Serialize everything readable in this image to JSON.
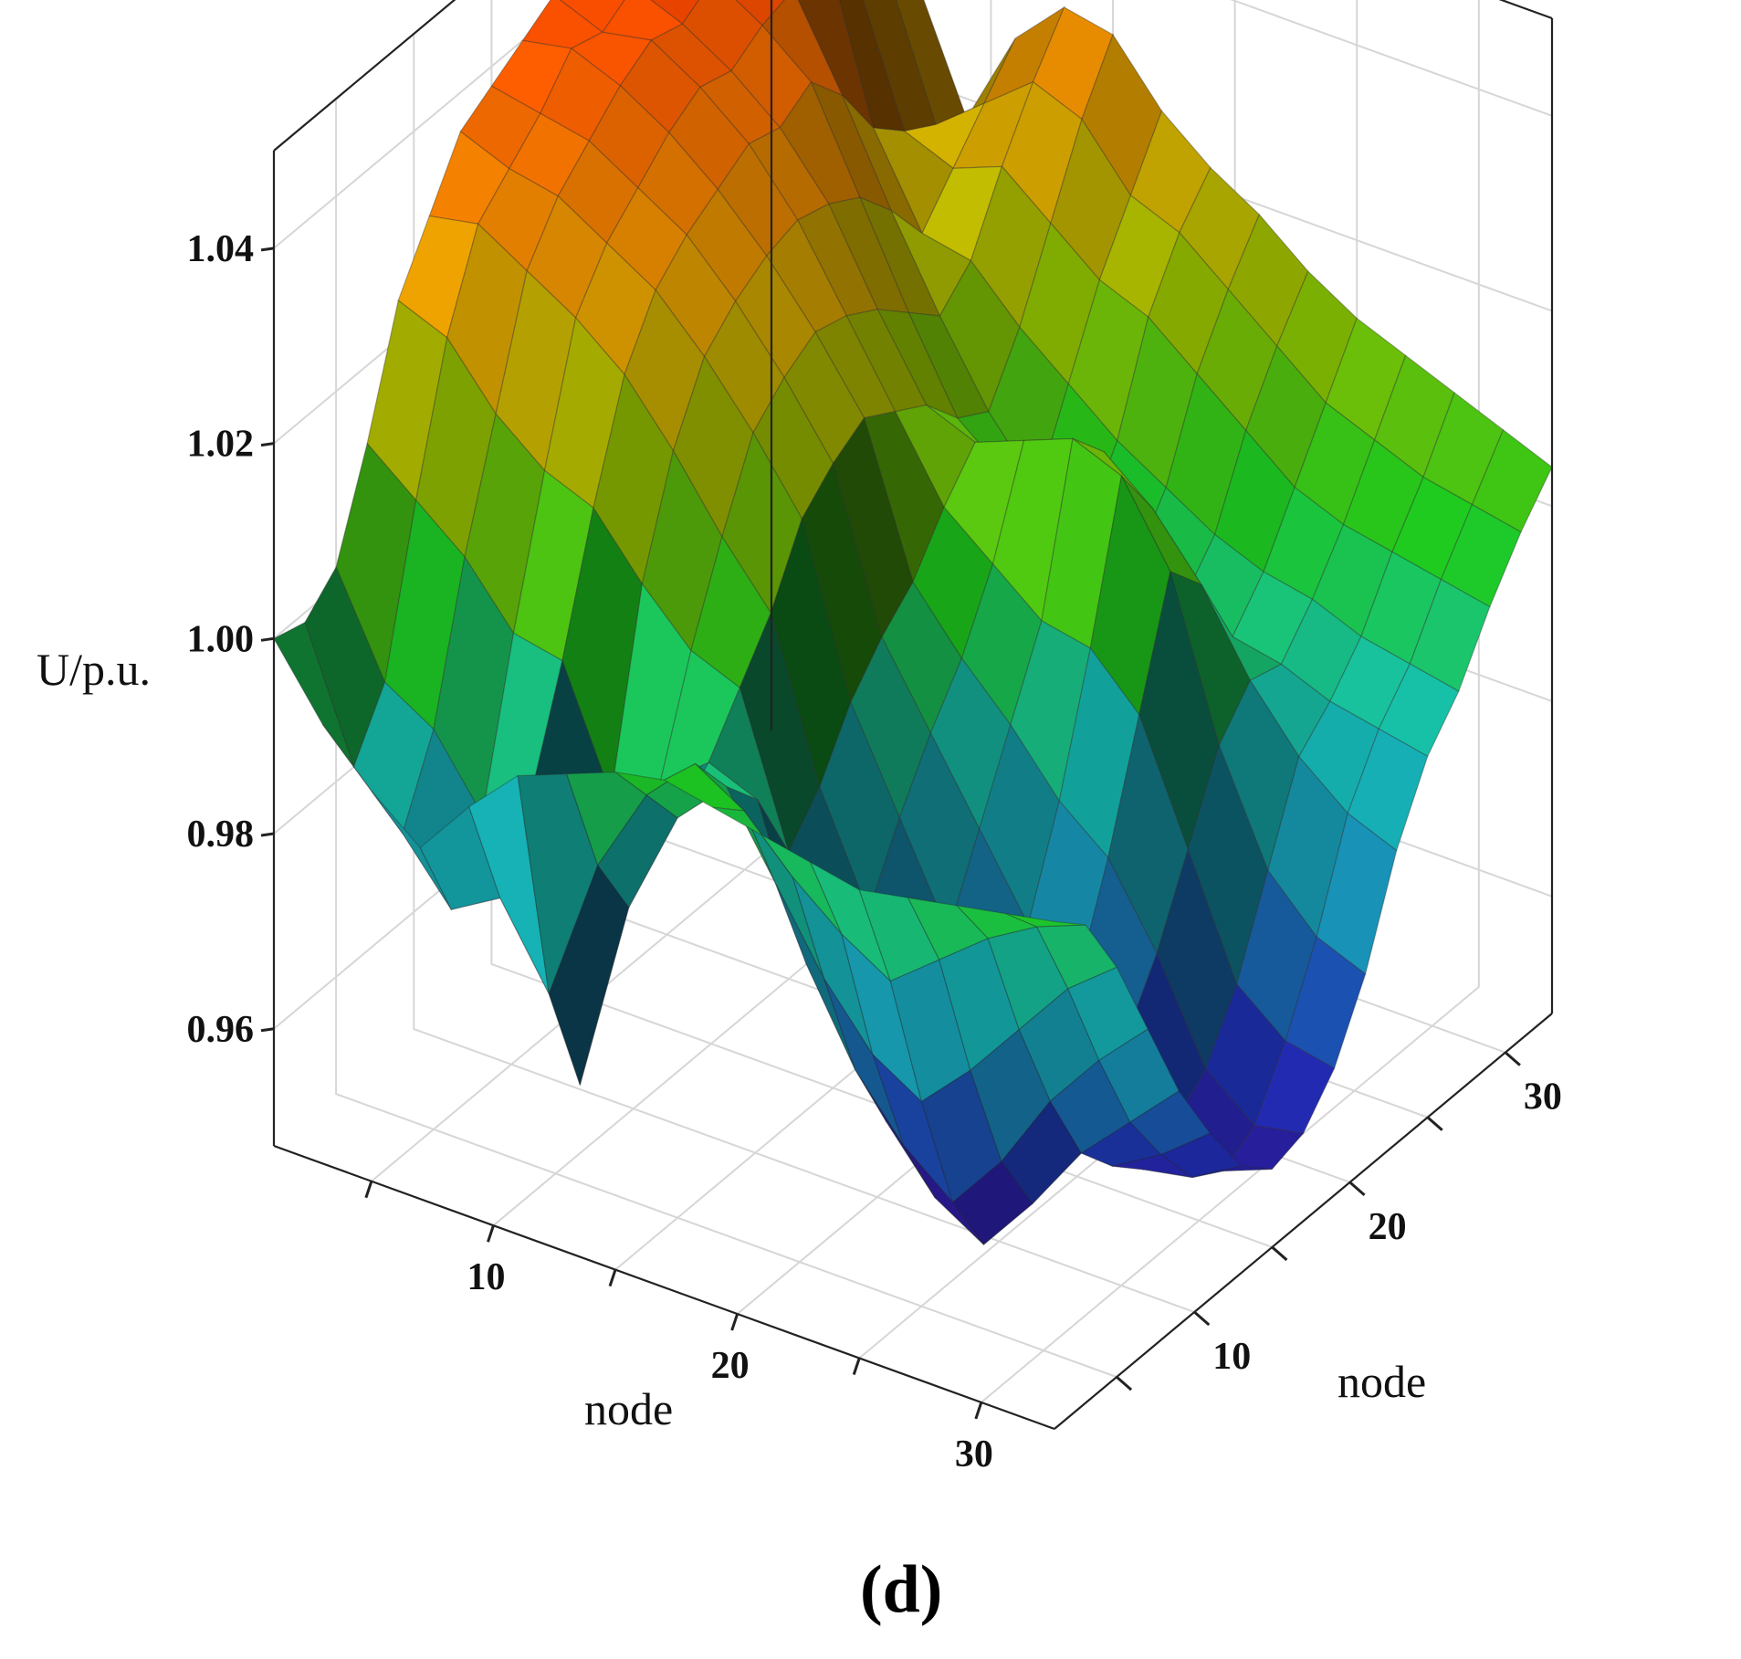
{
  "chart_data": {
    "type": "surface",
    "panel_label": "(d)",
    "zlabel": "U/p.u.",
    "xlabel": "node",
    "ylabel": "node",
    "z_ticks": [
      "0.96",
      "0.98",
      "1.00",
      "1.02",
      "1.04"
    ],
    "zlim": [
      0.948,
      1.05
    ],
    "x_ticks": [
      "10",
      "20",
      "30"
    ],
    "xlim": [
      1,
      33
    ],
    "y_ticks": [
      "10",
      "20",
      "30"
    ],
    "ylim": [
      1,
      33
    ],
    "grid": true,
    "colormap": [
      "#3a0a8a",
      "#1f2fb8",
      "#1a9fc8",
      "#17c9c0",
      "#1fd41f",
      "#9ad000",
      "#f2b400",
      "#ff6a00",
      "#ff1500"
    ],
    "nodes_x": [
      1,
      3,
      5,
      7,
      9,
      11,
      13,
      15,
      17,
      19,
      21,
      23,
      25,
      27,
      29,
      31,
      33
    ],
    "nodes_y": [
      1,
      3,
      5,
      7,
      9,
      11,
      13,
      15,
      17,
      19,
      21,
      23,
      25,
      27,
      29,
      31,
      33
    ],
    "values": [
      [
        1.0,
        0.999,
        1.002,
        1.012,
        1.024,
        1.03,
        1.036,
        1.038,
        1.04,
        1.042,
        1.041,
        1.043,
        1.044,
        1.046,
        1.048,
        1.05,
        1.049
      ],
      [
        0.993,
        0.986,
        0.992,
        1.008,
        1.022,
        1.031,
        1.034,
        1.037,
        1.041,
        1.04,
        1.042,
        1.044,
        1.045,
        1.047,
        1.049,
        1.048,
        1.046
      ],
      [
        0.988,
        0.981,
        0.989,
        1.004,
        1.016,
        1.028,
        1.033,
        1.036,
        1.039,
        1.041,
        1.04,
        1.042,
        1.043,
        1.045,
        1.047,
        1.046,
        1.044
      ],
      [
        0.984,
        0.975,
        0.982,
        0.998,
        1.012,
        1.025,
        1.03,
        1.033,
        1.036,
        1.038,
        1.037,
        1.039,
        1.04,
        1.042,
        1.036,
        1.034,
        1.03
      ],
      [
        0.99,
        0.978,
        0.986,
        0.997,
        1.01,
        1.021,
        1.027,
        1.03,
        1.032,
        1.034,
        1.033,
        1.035,
        1.031,
        1.025,
        1.022,
        1.02,
        1.018
      ],
      [
        0.995,
        0.97,
        0.958,
        0.985,
        1.004,
        1.015,
        1.022,
        1.025,
        1.027,
        1.028,
        1.027,
        1.025,
        1.021,
        1.016,
        1.02,
        1.024,
        1.028
      ],
      [
        0.997,
        0.985,
        0.978,
        0.988,
        0.999,
        1.008,
        1.016,
        1.019,
        1.021,
        1.02,
        1.018,
        1.015,
        1.012,
        1.015,
        1.022,
        1.028,
        1.033
      ],
      [
        0.999,
        0.994,
        0.989,
        0.992,
        0.997,
        1.002,
        1.009,
        1.012,
        1.014,
        1.012,
        1.01,
        1.006,
        1.004,
        1.01,
        1.018,
        1.026,
        1.032
      ],
      [
        1.0,
        0.999,
        0.994,
        0.99,
        0.982,
        0.986,
        0.992,
        0.996,
        0.999,
        1.004,
        1.008,
        1.002,
        0.998,
        1.006,
        1.014,
        1.02,
        1.026
      ],
      [
        0.999,
        0.996,
        0.986,
        0.975,
        0.968,
        0.975,
        0.982,
        0.988,
        0.993,
        1.0,
        1.01,
        1.005,
        0.996,
        1.002,
        1.012,
        1.018,
        1.022
      ],
      [
        0.998,
        0.991,
        0.978,
        0.966,
        0.958,
        0.964,
        0.972,
        0.98,
        0.988,
        0.996,
        1.012,
        1.008,
        0.994,
        0.999,
        1.008,
        1.014,
        1.019
      ],
      [
        0.997,
        0.987,
        0.972,
        0.96,
        0.952,
        0.957,
        0.965,
        0.972,
        0.982,
        0.995,
        1.01,
        1.004,
        0.992,
        0.996,
        1.004,
        1.01,
        1.015
      ],
      [
        0.996,
        0.984,
        0.969,
        0.956,
        0.949,
        0.954,
        0.961,
        0.968,
        0.978,
        0.99,
        1.002,
        0.998,
        0.99,
        0.994,
        1.0,
        1.006,
        1.012
      ],
      [
        0.997,
        0.988,
        0.974,
        0.962,
        0.955,
        0.96,
        0.962,
        0.964,
        0.97,
        0.978,
        0.986,
        0.99,
        0.989,
        0.993,
        0.998,
        1.004,
        1.01
      ],
      [
        0.998,
        0.992,
        0.98,
        0.97,
        0.962,
        0.958,
        0.955,
        0.957,
        0.96,
        0.966,
        0.975,
        0.984,
        0.987,
        0.991,
        0.997,
        1.002,
        1.008
      ],
      [
        0.999,
        0.995,
        0.986,
        0.976,
        0.967,
        0.961,
        0.956,
        0.954,
        0.956,
        0.962,
        0.97,
        0.98,
        0.986,
        0.99,
        0.996,
        1.001,
        1.006
      ],
      [
        1.0,
        0.997,
        0.99,
        0.981,
        0.972,
        0.965,
        0.959,
        0.956,
        0.957,
        0.961,
        0.968,
        0.978,
        0.985,
        0.989,
        0.995,
        1.0,
        1.004
      ]
    ]
  }
}
